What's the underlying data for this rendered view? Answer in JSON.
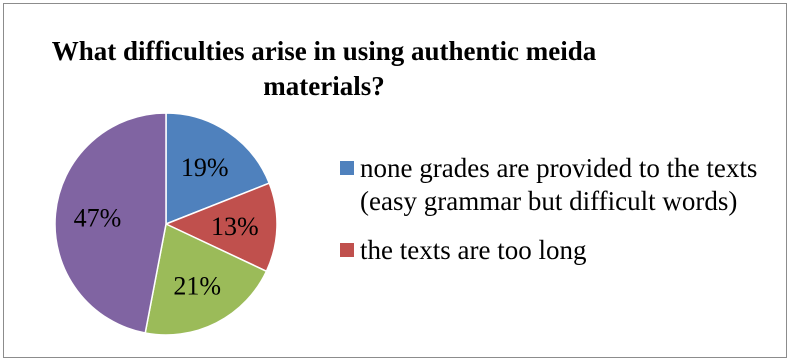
{
  "chart_data": {
    "type": "pie",
    "title": "What difficulties arise in using authentic meida materials?",
    "slices": [
      {
        "label": "none grades are provided to the texts (easy grammar but difficult words)",
        "value": 19,
        "display": "19%",
        "color": "#4f81bd"
      },
      {
        "label": "the texts are too long",
        "value": 13,
        "display": "13%",
        "color": "#c0504d"
      },
      {
        "label": "",
        "value": 21,
        "display": "21%",
        "color": "#9bbb59"
      },
      {
        "label": "",
        "value": 47,
        "display": "47%",
        "color": "#8064a2"
      }
    ],
    "legend": [
      {
        "label": "none grades are provided to the texts (easy grammar but difficult words)",
        "color": "#4f81bd"
      },
      {
        "label": "the texts are too long",
        "color": "#c0504d"
      }
    ],
    "legend_position": "right"
  }
}
